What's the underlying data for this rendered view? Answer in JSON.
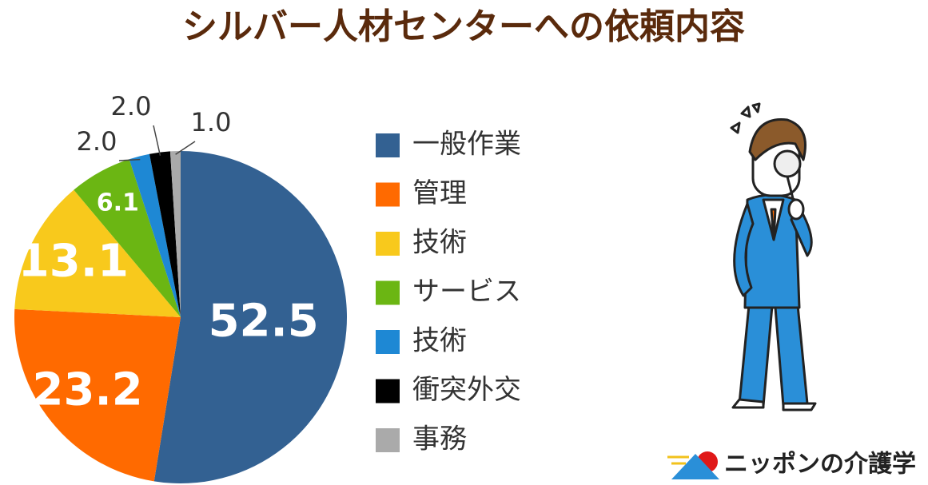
{
  "chart_data": {
    "type": "pie",
    "title": "シルバー人材センターへの依頼内容",
    "categories": [
      "一般作業",
      "管理",
      "技術",
      "サービス",
      "技術",
      "衝突外交",
      "事務"
    ],
    "values": [
      52.5,
      23.2,
      13.1,
      6.1,
      2.0,
      2.0,
      1.0
    ],
    "value_labels": [
      "52.5",
      "23.2",
      "13.1",
      "6.1",
      "2.0",
      "2.0",
      "1.0"
    ],
    "colors": [
      "#336192",
      "#ff6a00",
      "#f8c91c",
      "#6bb613",
      "#1e88d4",
      "#000000",
      "#aaaaaa"
    ],
    "legend": "right"
  },
  "logo_text": "ニッポンの介護学"
}
